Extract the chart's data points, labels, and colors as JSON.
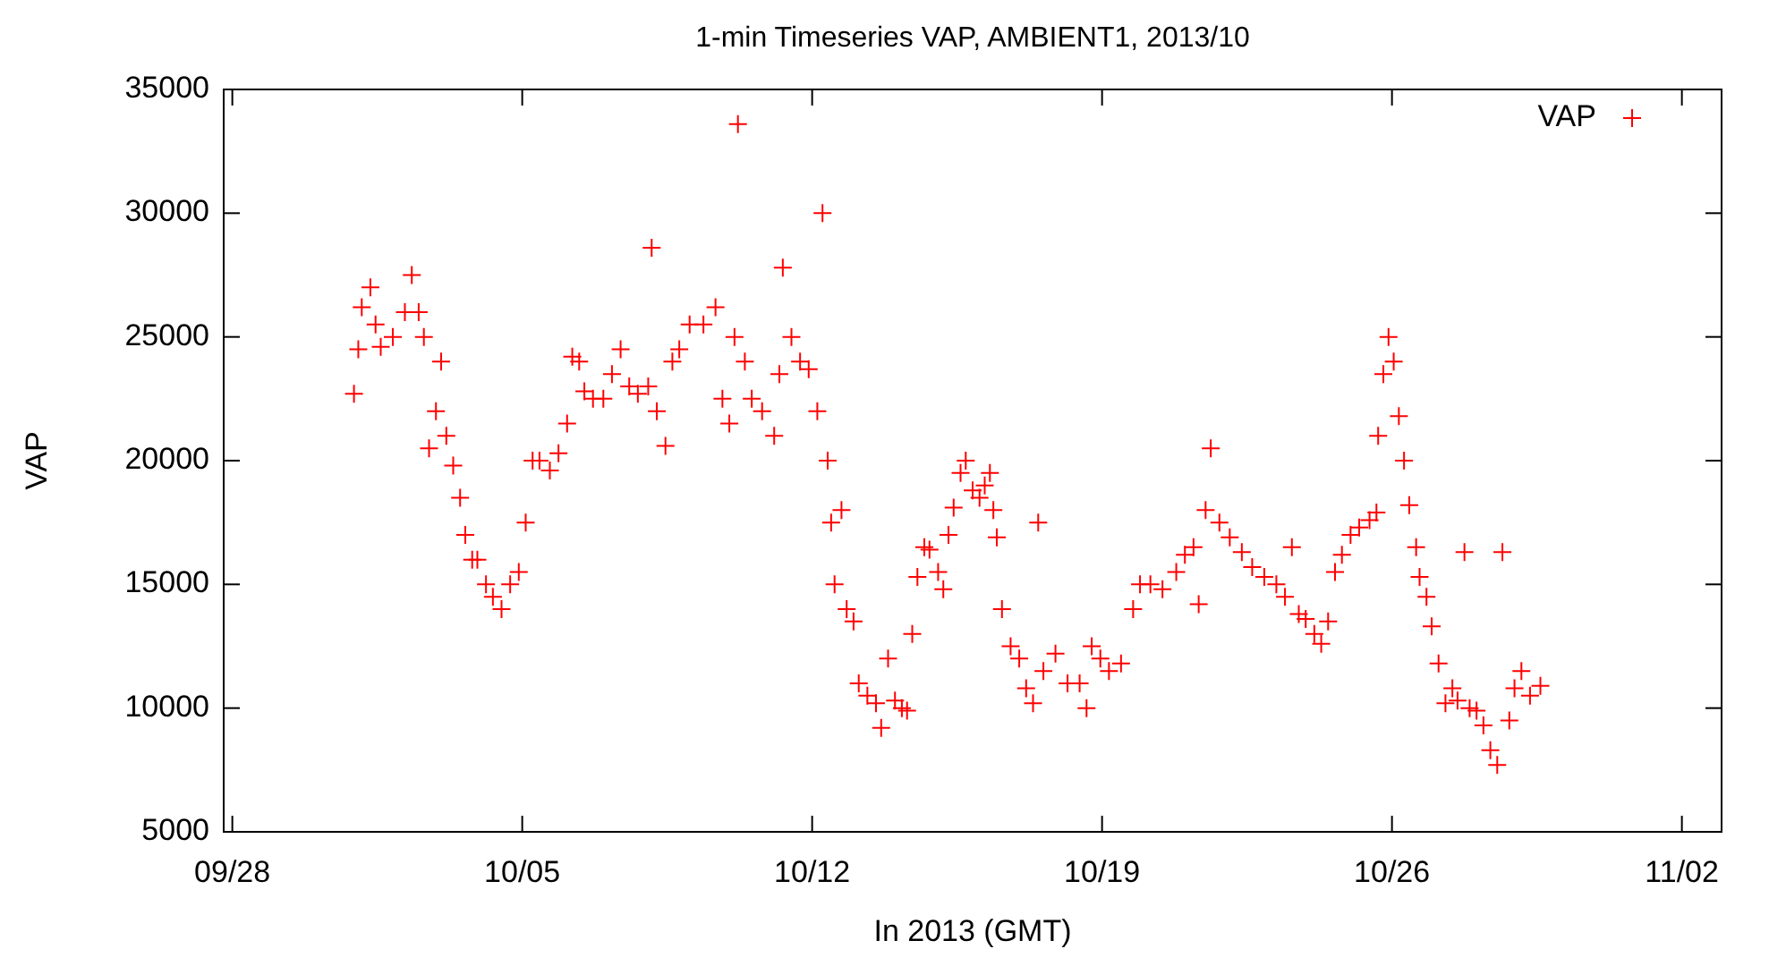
{
  "chart_data": {
    "type": "scatter",
    "title": "1-min Timeseries VAP, AMBIENT1, 2013/10",
    "xlabel": "In 2013 (GMT)",
    "ylabel": "VAP",
    "xlim": [
      "2013-09-27T19:00",
      "2013-11-02T23:00"
    ],
    "xticks": [
      {
        "value": "2013-09-28",
        "label": "09/28"
      },
      {
        "value": "2013-10-05",
        "label": "10/05"
      },
      {
        "value": "2013-10-12",
        "label": "10/12"
      },
      {
        "value": "2013-10-19",
        "label": "10/19"
      },
      {
        "value": "2013-10-26",
        "label": "10/26"
      },
      {
        "value": "2013-11-02",
        "label": "11/02"
      }
    ],
    "ylim": [
      5000,
      35000
    ],
    "yticks": [
      5000,
      10000,
      15000,
      20000,
      25000,
      30000,
      35000
    ],
    "grid": false,
    "legend": "top right",
    "marker": "cross",
    "series": [
      {
        "name": "VAP",
        "color": "#ff0000",
        "x": [
          "2013-09-30T22:30",
          "2013-10-01T01:00",
          "2013-10-01T03:00",
          "2013-10-01T08:00",
          "2013-10-01T11:00",
          "2013-10-01T14:00",
          "2013-10-01T21:00",
          "2013-10-02T04:00",
          "2013-10-02T08:00",
          "2013-10-02T12:00",
          "2013-10-02T15:00",
          "2013-10-02T18:00",
          "2013-10-02T22:00",
          "2013-10-03T01:00",
          "2013-10-03T04:00",
          "2013-10-03T08:00",
          "2013-10-03T12:00",
          "2013-10-03T15:00",
          "2013-10-03T19:00",
          "2013-10-03T22:00",
          "2013-10-04T03:00",
          "2013-10-04T07:00",
          "2013-10-04T12:00",
          "2013-10-04T17:00",
          "2013-10-04T22:00",
          "2013-10-05T02:00",
          "2013-10-05T06:00",
          "2013-10-05T10:00",
          "2013-10-05T16:00",
          "2013-10-05T21:00",
          "2013-10-06T02:00",
          "2013-10-06T05:00",
          "2013-10-06T09:00",
          "2013-10-06T12:00",
          "2013-10-06T17:00",
          "2013-10-06T23:00",
          "2013-10-07T04:00",
          "2013-10-07T09:00",
          "2013-10-07T14:00",
          "2013-10-07T19:00",
          "2013-10-08T01:00",
          "2013-10-08T03:00",
          "2013-10-08T06:00",
          "2013-10-08T11:00",
          "2013-10-08T15:00",
          "2013-10-08T19:00",
          "2013-10-09T01:00",
          "2013-10-09T09:00",
          "2013-10-09T16:00",
          "2013-10-09T20:00",
          "2013-10-10T00:00",
          "2013-10-10T03:00",
          "2013-10-10T05:00",
          "2013-10-10T09:00",
          "2013-10-10T13:00",
          "2013-10-10T19:00",
          "2013-10-11T02:00",
          "2013-10-11T05:00",
          "2013-10-11T07:00",
          "2013-10-11T12:00",
          "2013-10-11T17:00",
          "2013-10-11T22:00",
          "2013-10-12T03:00",
          "2013-10-12T06:00",
          "2013-10-12T09:00",
          "2013-10-12T11:00",
          "2013-10-12T13:00",
          "2013-10-12T17:00",
          "2013-10-12T20:00",
          "2013-10-13T00:00",
          "2013-10-13T03:00",
          "2013-10-13T08:00",
          "2013-10-13T13:00",
          "2013-10-13T16:00",
          "2013-10-13T20:00",
          "2013-10-14T00:00",
          "2013-10-14T04:00",
          "2013-10-14T07:00",
          "2013-10-14T10:00",
          "2013-10-14T13:00",
          "2013-10-14T17:00",
          "2013-10-14T20:00",
          "2013-10-15T01:00",
          "2013-10-15T04:00",
          "2013-10-15T07:00",
          "2013-10-15T10:00",
          "2013-10-15T14:00",
          "2013-10-15T17:00",
          "2013-10-15T21:00",
          "2013-10-16T01:00",
          "2013-10-16T04:00",
          "2013-10-16T07:00",
          "2013-10-16T09:00",
          "2013-10-16T11:00",
          "2013-10-16T14:00",
          "2013-10-16T19:00",
          "2013-10-17T00:00",
          "2013-10-17T04:00",
          "2013-10-17T08:00",
          "2013-10-17T11:00",
          "2013-10-17T14:00",
          "2013-10-17T21:00",
          "2013-10-18T04:00",
          "2013-10-18T11:00",
          "2013-10-18T15:00",
          "2013-10-18T18:00",
          "2013-10-18T23:00",
          "2013-10-19T04:00",
          "2013-10-19T11:00",
          "2013-10-19T18:00",
          "2013-10-19T22:00",
          "2013-10-20T04:00",
          "2013-10-20T11:00",
          "2013-10-20T19:00",
          "2013-10-21T00:00",
          "2013-10-21T05:00",
          "2013-10-21T08:00",
          "2013-10-21T12:00",
          "2013-10-21T15:00",
          "2013-10-21T20:00",
          "2013-10-22T02:00",
          "2013-10-22T09:00",
          "2013-10-22T15:00",
          "2013-10-22T22:00",
          "2013-10-23T05:00",
          "2013-10-23T10:00",
          "2013-10-23T14:00",
          "2013-10-23T18:00",
          "2013-10-23T22:00",
          "2013-10-24T03:00",
          "2013-10-24T07:00",
          "2013-10-24T11:00",
          "2013-10-24T15:00",
          "2013-10-24T19:00",
          "2013-10-25T00:00",
          "2013-10-25T05:00",
          "2013-10-25T11:00",
          "2013-10-25T15:00",
          "2013-10-25T16:00",
          "2013-10-25T19:00",
          "2013-10-25T22:00",
          "2013-10-26T01:00",
          "2013-10-26T04:00",
          "2013-10-26T07:00",
          "2013-10-26T10:00",
          "2013-10-26T14:00",
          "2013-10-26T16:00",
          "2013-10-26T20:00",
          "2013-10-26T23:00",
          "2013-10-27T03:00",
          "2013-10-27T07:00",
          "2013-10-27T11:00",
          "2013-10-27T14:00",
          "2013-10-27T18:00",
          "2013-10-27T21:00",
          "2013-10-28T01:00",
          "2013-10-28T05:00",
          "2013-10-28T09:00",
          "2013-10-28T13:00",
          "2013-10-28T16:00",
          "2013-10-28T20:00",
          "2013-10-28T23:00",
          "2013-10-29T03:00",
          "2013-10-29T08:00",
          "2013-10-29T14:00"
        ],
        "values": [
          22700,
          24500,
          26200,
          27000,
          25500,
          24600,
          25000,
          26000,
          27500,
          26000,
          25000,
          20500,
          22000,
          24000,
          21000,
          19800,
          18500,
          17000,
          16000,
          16000,
          15000,
          14500,
          14000,
          15000,
          15500,
          17500,
          20000,
          20000,
          19600,
          20300,
          21500,
          24200,
          24000,
          22800,
          22500,
          22500,
          23500,
          24500,
          23000,
          22700,
          23000,
          28600,
          22000,
          20600,
          24000,
          24500,
          25500,
          25500,
          26200,
          22500,
          21500,
          25000,
          33600,
          24000,
          22500,
          22000,
          21000,
          23500,
          27800,
          25000,
          24000,
          23700,
          22000,
          30000,
          20000,
          17500,
          15000,
          18000,
          14000,
          13500,
          11000,
          10500,
          10200,
          9200,
          12000,
          10300,
          10000,
          9900,
          13000,
          15300,
          16500,
          16400,
          15500,
          14800,
          17000,
          18100,
          19500,
          20000,
          18800,
          18500,
          19000,
          19500,
          18000,
          16900,
          14000,
          12500,
          12000,
          10800,
          10200,
          17500,
          11500,
          12200,
          11000,
          11000,
          10000,
          12500,
          12000,
          11500,
          11800,
          14000,
          15000,
          15000,
          14800,
          15500,
          16200,
          16500,
          14200,
          18000,
          20500,
          17500,
          16900,
          16300,
          15700,
          15300,
          15000,
          14500,
          16500,
          13800,
          13600,
          13000,
          12600,
          13500,
          15500,
          16200,
          17000,
          17300,
          17600,
          17900,
          21000,
          23500,
          25000,
          24000,
          21800,
          20000,
          18200,
          16500,
          15300,
          14500,
          13300,
          11800,
          10200,
          10800,
          10300,
          16300,
          10000,
          9900,
          9300,
          8300,
          7700,
          16300,
          9500,
          10800,
          11500,
          10500,
          10900
        ]
      }
    ]
  }
}
